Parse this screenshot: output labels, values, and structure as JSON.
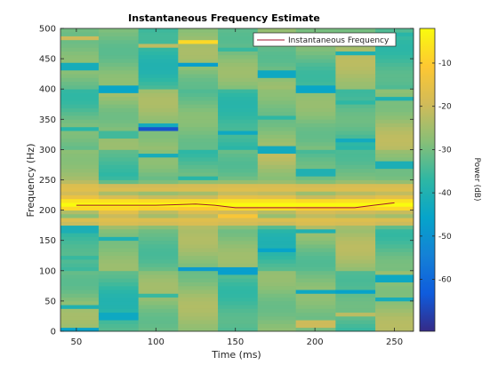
{
  "chart_data": {
    "type": "heatmap",
    "title": "Instantaneous Frequency Estimate",
    "xlabel": "Time (ms)",
    "ylabel": "Frequency (Hz)",
    "colorbar_label": "Power (dB)",
    "xlim": [
      40,
      262
    ],
    "ylim": [
      0,
      500
    ],
    "clim": [
      -72,
      -2
    ],
    "colormap": "parula",
    "x_ticks": [
      50,
      100,
      150,
      200,
      250
    ],
    "x_tick_labels": [
      "50",
      "100",
      "150",
      "200",
      "250"
    ],
    "y_ticks": [
      0,
      50,
      100,
      150,
      200,
      250,
      300,
      350,
      400,
      450,
      500
    ],
    "y_tick_labels": [
      "0",
      "50",
      "100",
      "150",
      "200",
      "250",
      "300",
      "350",
      "400",
      "450",
      "500"
    ],
    "colorbar_ticks": [
      -10,
      -20,
      -30,
      -40,
      -50,
      -60
    ],
    "colorbar_tick_labels": [
      "-10",
      "-20",
      "-30",
      "-40",
      "-50",
      "-60"
    ],
    "time_bin_edges": [
      40,
      64,
      89,
      114,
      139,
      164,
      188,
      213,
      238,
      262
    ],
    "legend": {
      "location": "top-right",
      "entries": [
        "Instantaneous Frequency"
      ]
    },
    "series": [
      {
        "name": "Instantaneous Frequency",
        "color": "#A2142F",
        "x": [
          50,
          75,
          100,
          112,
          125,
          137,
          150,
          175,
          200,
          225,
          237,
          250
        ],
        "y": [
          208,
          208,
          208,
          209,
          210,
          208,
          204,
          204,
          204,
          204,
          208,
          212
        ]
      }
    ],
    "background_level_db": -31,
    "bin_variation_db": [
      [
        3,
        -6,
        2,
        8,
        -4,
        1,
        5,
        -3,
        6
      ],
      [
        -5,
        4,
        -2,
        10,
        2,
        -8,
        3,
        7,
        -1
      ],
      [
        6,
        -3,
        1,
        -7,
        4,
        9,
        -5,
        2,
        3
      ],
      [
        -2,
        7,
        5,
        3,
        -9,
        2,
        6,
        -6,
        8
      ],
      [
        4,
        -1,
        -8,
        6,
        1,
        5,
        -3,
        9,
        -4
      ]
    ],
    "peaks": [
      {
        "y": 210,
        "width": 13,
        "peak_db": -2
      },
      {
        "y": 237,
        "width": 8,
        "peak_db": -16
      },
      {
        "y": 182,
        "width": 8,
        "peak_db": -16
      }
    ],
    "stripes": [
      {
        "bin": 0,
        "y": 5,
        "db": -46
      },
      {
        "bin": 0,
        "y": 40,
        "db": -40
      },
      {
        "bin": 0,
        "y": 120,
        "db": -36
      },
      {
        "bin": 0,
        "y": 168,
        "db": -41
      },
      {
        "bin": 0,
        "y": 335,
        "db": -38
      },
      {
        "bin": 0,
        "y": 437,
        "db": -42
      },
      {
        "bin": 0,
        "y": 485,
        "db": -20
      },
      {
        "bin": 1,
        "y": 25,
        "db": -44
      },
      {
        "bin": 1,
        "y": 155,
        "db": -40
      },
      {
        "bin": 1,
        "y": 260,
        "db": -37
      },
      {
        "bin": 1,
        "y": 325,
        "db": -35
      },
      {
        "bin": 1,
        "y": 400,
        "db": -45
      },
      {
        "bin": 2,
        "y": 60,
        "db": -36
      },
      {
        "bin": 2,
        "y": 290,
        "db": -42
      },
      {
        "bin": 2,
        "y": 334,
        "db": -65
      },
      {
        "bin": 2,
        "y": 340,
        "db": -43
      },
      {
        "bin": 2,
        "y": 470,
        "db": -22
      },
      {
        "bin": 3,
        "y": 105,
        "db": -48
      },
      {
        "bin": 3,
        "y": 255,
        "db": -38
      },
      {
        "bin": 3,
        "y": 442,
        "db": -47
      },
      {
        "bin": 3,
        "y": 480,
        "db": -8
      },
      {
        "bin": 4,
        "y": 100,
        "db": -47
      },
      {
        "bin": 4,
        "y": 192,
        "db": -12
      },
      {
        "bin": 4,
        "y": 328,
        "db": -44
      },
      {
        "bin": 4,
        "y": 465,
        "db": -36
      },
      {
        "bin": 5,
        "y": 135,
        "db": -46
      },
      {
        "bin": 5,
        "y": 300,
        "db": -43
      },
      {
        "bin": 5,
        "y": 355,
        "db": -37
      },
      {
        "bin": 5,
        "y": 425,
        "db": -44
      },
      {
        "bin": 6,
        "y": 65,
        "db": -44
      },
      {
        "bin": 6,
        "y": 165,
        "db": -40
      },
      {
        "bin": 6,
        "y": 262,
        "db": -40
      },
      {
        "bin": 6,
        "y": 400,
        "db": -45
      },
      {
        "bin": 6,
        "y": 12,
        "db": -20
      },
      {
        "bin": 7,
        "y": 65,
        "db": -46
      },
      {
        "bin": 7,
        "y": 315,
        "db": -43
      },
      {
        "bin": 7,
        "y": 378,
        "db": -37
      },
      {
        "bin": 7,
        "y": 460,
        "db": -40
      },
      {
        "bin": 7,
        "y": 30,
        "db": -22
      },
      {
        "bin": 8,
        "y": 52,
        "db": -42
      },
      {
        "bin": 8,
        "y": 88,
        "db": -44
      },
      {
        "bin": 8,
        "y": 275,
        "db": -41
      },
      {
        "bin": 8,
        "y": 383,
        "db": -40
      },
      {
        "bin": 8,
        "y": 490,
        "db": -38
      }
    ]
  }
}
